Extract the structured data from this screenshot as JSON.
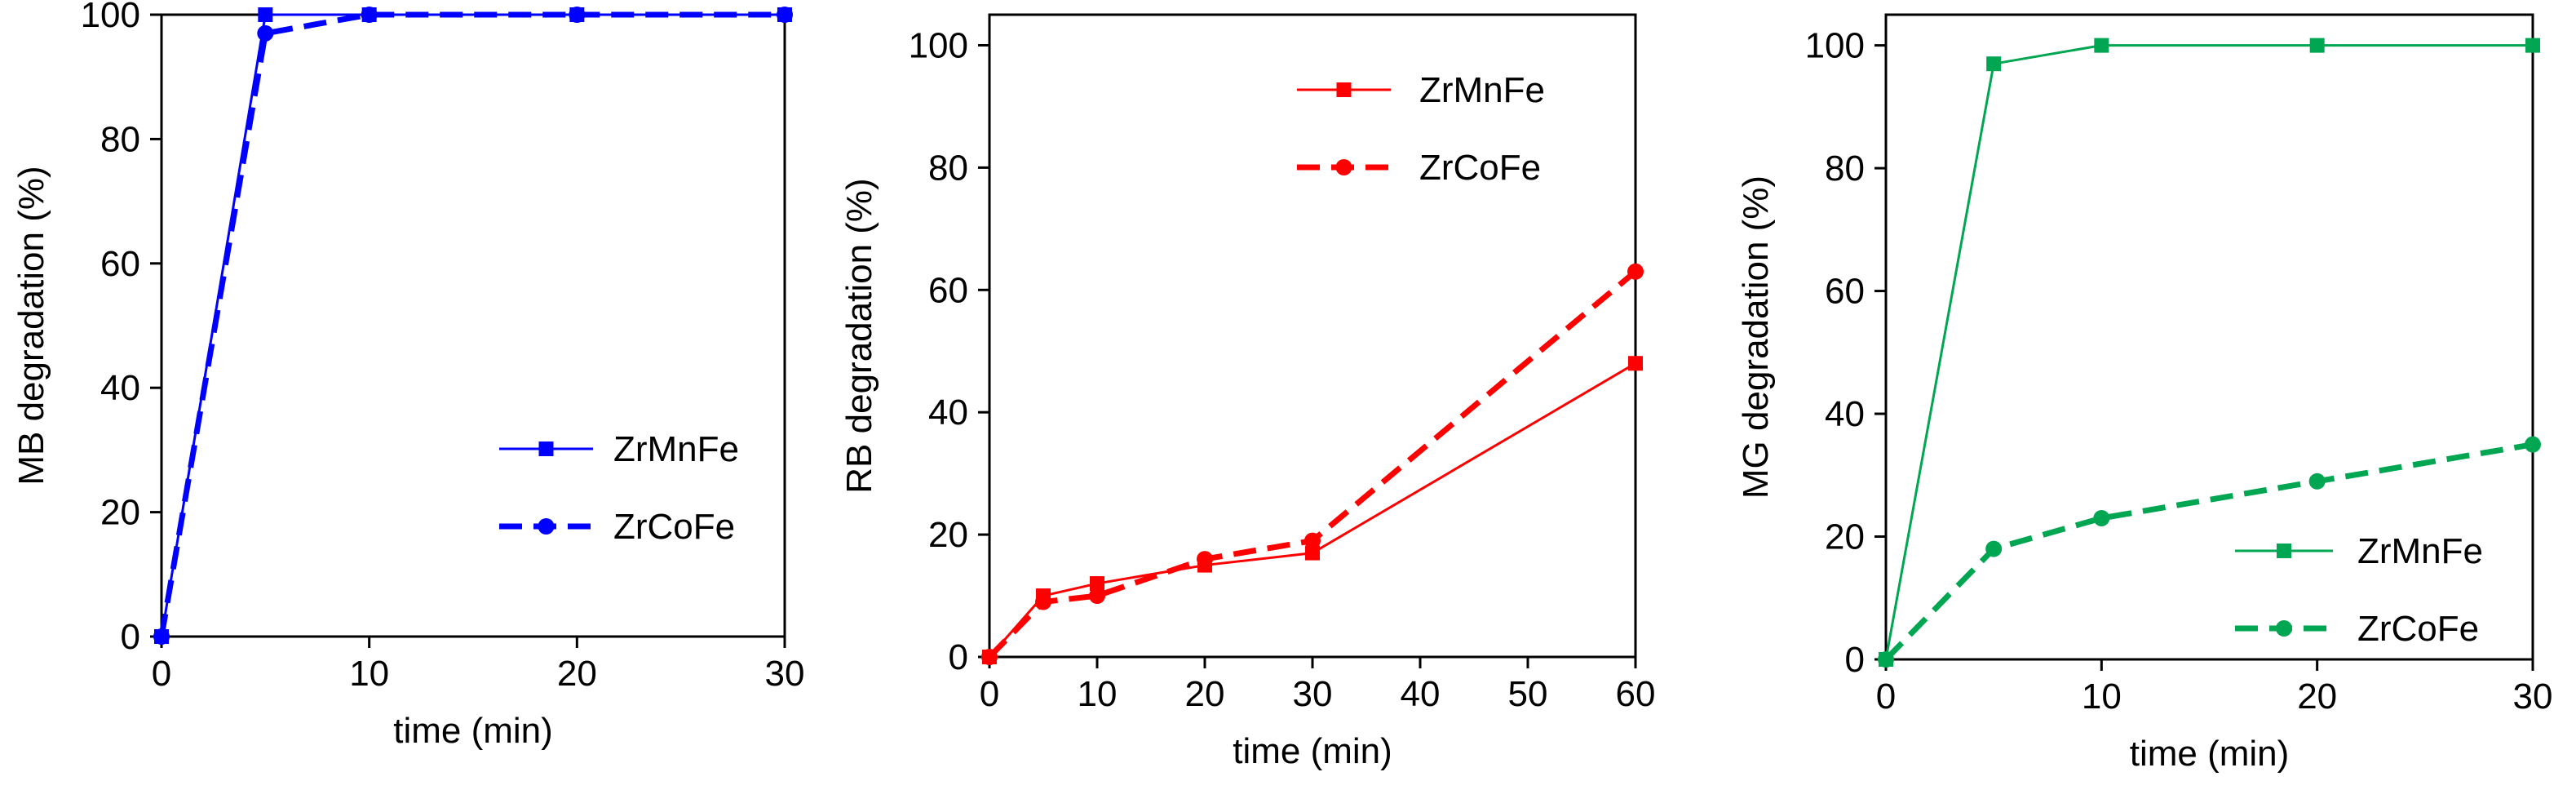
{
  "chart_data": [
    {
      "type": "line",
      "color": "#0000ff",
      "xlabel": "time (min)",
      "ylabel": "MB degradation (%)",
      "xlim": [
        0,
        30
      ],
      "ylim": [
        0,
        100
      ],
      "xticks": [
        0,
        10,
        20,
        30
      ],
      "yticks": [
        0,
        20,
        40,
        60,
        80,
        100
      ],
      "grid": false,
      "legend_position": "center-right",
      "series": [
        {
          "name": "ZrMnFe",
          "marker": "square",
          "dash": "solid",
          "x": [
            0,
            5,
            10,
            20,
            30
          ],
          "y": [
            0,
            100,
            100,
            100,
            100
          ]
        },
        {
          "name": "ZrCoFe",
          "marker": "circle",
          "dash": "dashed",
          "x": [
            0,
            5,
            10,
            20,
            30
          ],
          "y": [
            0,
            97,
            100,
            100,
            100
          ]
        }
      ]
    },
    {
      "type": "line",
      "color": "#ff0000",
      "xlabel": "time (min)",
      "ylabel": "RB degradation (%)",
      "xlim": [
        0,
        60
      ],
      "ylim": [
        0,
        105
      ],
      "xticks": [
        0,
        10,
        20,
        30,
        40,
        50,
        60
      ],
      "yticks": [
        0,
        20,
        40,
        60,
        80,
        100
      ],
      "grid": false,
      "legend_position": "top-right",
      "series": [
        {
          "name": "ZrMnFe",
          "marker": "square",
          "dash": "solid",
          "x": [
            0,
            5,
            10,
            20,
            30,
            60
          ],
          "y": [
            0,
            10,
            12,
            15,
            17,
            48
          ]
        },
        {
          "name": "ZrCoFe",
          "marker": "circle",
          "dash": "dashed",
          "x": [
            0,
            5,
            10,
            20,
            30,
            60
          ],
          "y": [
            0,
            9,
            10,
            16,
            19,
            63
          ]
        }
      ]
    },
    {
      "type": "line",
      "color": "#00a651",
      "xlabel": "time (min)",
      "ylabel": "MG degradation (%)",
      "xlim": [
        0,
        30
      ],
      "ylim": [
        0,
        105
      ],
      "xticks": [
        0,
        10,
        20,
        30
      ],
      "yticks": [
        0,
        20,
        40,
        60,
        80,
        100
      ],
      "grid": false,
      "legend_position": "bottom-right",
      "series": [
        {
          "name": "ZrMnFe",
          "marker": "square",
          "dash": "solid",
          "x": [
            0,
            5,
            10,
            20,
            30
          ],
          "y": [
            0,
            97,
            100,
            100,
            100
          ]
        },
        {
          "name": "ZrCoFe",
          "marker": "circle",
          "dash": "dashed",
          "x": [
            0,
            5,
            10,
            20,
            30
          ],
          "y": [
            0,
            18,
            23,
            29,
            35
          ]
        }
      ]
    }
  ]
}
